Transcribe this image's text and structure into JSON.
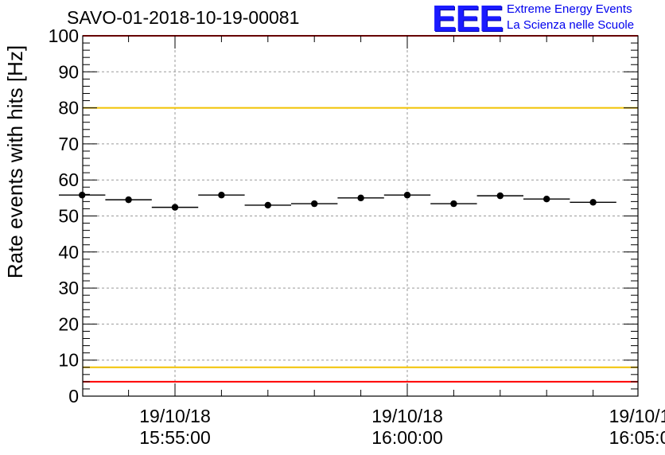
{
  "logo": {
    "mark": "EEE",
    "line1": "Extreme Energy Events",
    "line2": "La Scienza nelle Scuole",
    "color": "#1a1aff"
  },
  "chart_data": {
    "type": "scatter",
    "title": "SAVO-01-2018-10-19-00081",
    "ylabel": "Rate events with hits [Hz]",
    "xlabel": "",
    "ylim": [
      0,
      100
    ],
    "yticks": [
      0,
      10,
      20,
      30,
      40,
      50,
      60,
      70,
      80,
      90,
      100
    ],
    "xticks": [
      {
        "date": "19/10/18",
        "time": "15:55:00"
      },
      {
        "date": "19/10/18",
        "time": "16:00:00"
      },
      {
        "date": "19/10/1",
        "time": "16:05:0"
      }
    ],
    "grid": true,
    "points": [
      {
        "x": "15:53:00",
        "y": 55.8
      },
      {
        "x": "15:54:00",
        "y": 54.5
      },
      {
        "x": "15:55:00",
        "y": 52.4
      },
      {
        "x": "15:56:00",
        "y": 55.8
      },
      {
        "x": "15:57:00",
        "y": 53.0
      },
      {
        "x": "15:58:00",
        "y": 53.4
      },
      {
        "x": "15:59:00",
        "y": 55.0
      },
      {
        "x": "16:00:00",
        "y": 55.8
      },
      {
        "x": "16:01:00",
        "y": 53.4
      },
      {
        "x": "16:02:00",
        "y": 55.6
      },
      {
        "x": "16:03:00",
        "y": 54.7
      },
      {
        "x": "16:04:00",
        "y": 53.8
      }
    ],
    "reference_lines": [
      {
        "y": 100,
        "color": "#ff0000"
      },
      {
        "y": 80,
        "color": "#f2c200"
      },
      {
        "y": 8,
        "color": "#f2c200"
      },
      {
        "y": 4,
        "color": "#ff0000"
      }
    ]
  }
}
